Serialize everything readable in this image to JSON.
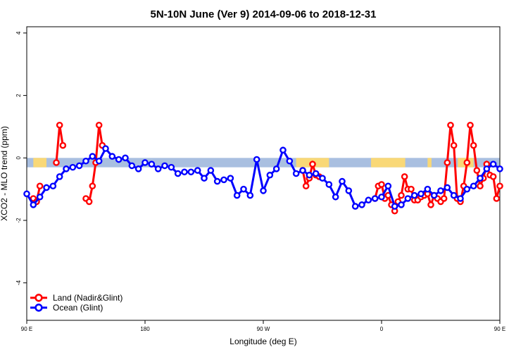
{
  "chart_data": {
    "type": "line",
    "title": "5N-10N June (Ver 9)   2014-09-06 to 2018-12-31",
    "xlabel": "Longitude (deg E)",
    "ylabel": "XCO2 - MLO trend (ppm)",
    "xlim": [
      90,
      450
    ],
    "ylim": [
      -5.2,
      4.2
    ],
    "x_ticks": [
      {
        "value": 90,
        "label": "90 E"
      },
      {
        "value": 180,
        "label": "180"
      },
      {
        "value": 270,
        "label": "90 W"
      },
      {
        "value": 360,
        "label": "0"
      },
      {
        "value": 450,
        "label": "90 E"
      },
      {
        "value": 540,
        "label": "180"
      }
    ],
    "y_ticks": [
      {
        "value": -4,
        "label": "-4"
      },
      {
        "value": -2,
        "label": "-2"
      },
      {
        "value": 0,
        "label": "0"
      },
      {
        "value": 2,
        "label": "2"
      },
      {
        "value": 4,
        "label": "4"
      }
    ],
    "background_band": {
      "ymin": -0.3,
      "ymax": 0.0,
      "color": "#a9bfe0",
      "land_color": "#f9d877"
    },
    "grid": false,
    "legend_position": "bottom-left",
    "series": [
      {
        "name": "Land (Nadir&Glint)",
        "color": "#ff0000",
        "x": [
          95,
          97.5,
          100,
          112.5,
          115,
          117.5,
          135,
          137.5,
          140,
          142.5,
          145,
          147.5,
          300,
          302.5,
          305,
          307.5,
          310,
          312.5,
          355,
          357.5,
          360,
          362.5,
          365,
          367.5,
          370,
          372.5,
          375,
          377.5,
          380,
          382.5,
          385,
          387.5,
          390,
          392.5,
          395,
          397.5,
          400,
          402.5,
          405,
          407.5,
          410,
          412.5,
          415,
          417.5,
          420,
          422.5,
          425,
          427.5,
          430,
          432.5,
          435,
          437.5,
          440,
          442.5,
          445,
          447.5,
          450
        ],
        "y": [
          -1.3,
          -1.4,
          -0.9,
          -0.15,
          1.05,
          0.4,
          -1.3,
          -1.4,
          -0.9,
          -0.15,
          1.05,
          0.4,
          -0.4,
          -0.9,
          -0.65,
          -0.2,
          -0.55,
          -0.6,
          -1.3,
          -0.9,
          -0.85,
          -1.3,
          -1.2,
          -1.5,
          -1.7,
          -1.4,
          -1.2,
          -0.6,
          -1.0,
          -1.0,
          -1.35,
          -1.35,
          -1.25,
          -1.2,
          -1.15,
          -1.5,
          -1.2,
          -1.3,
          -1.4,
          -1.3,
          -0.15,
          1.05,
          0.4,
          -1.3,
          -1.4,
          -0.9,
          -0.15,
          1.05,
          0.4,
          -0.4,
          -0.9,
          -0.65,
          -0.2,
          -0.55,
          -0.6,
          -1.3,
          -0.9
        ]
      },
      {
        "name": "Ocean (Glint)",
        "color": "#0000ff",
        "x": [
          90,
          95,
          100,
          105,
          110,
          115,
          120,
          125,
          130,
          135,
          140,
          145,
          150,
          155,
          160,
          165,
          170,
          175,
          180,
          185,
          190,
          195,
          200,
          205,
          210,
          215,
          220,
          225,
          230,
          235,
          240,
          245,
          250,
          255,
          260,
          265,
          270,
          275,
          280,
          285,
          290,
          295,
          300,
          305,
          310,
          315,
          320,
          325,
          330,
          335,
          340,
          345,
          350,
          355,
          360,
          365,
          370,
          375,
          380,
          385,
          390,
          395,
          400,
          405,
          410,
          415,
          420,
          425,
          430,
          435,
          440,
          445,
          450
        ],
        "y": [
          -1.15,
          -1.5,
          -1.25,
          -0.95,
          -0.9,
          -0.6,
          -0.35,
          -0.3,
          -0.25,
          -0.1,
          0.05,
          -0.1,
          0.3,
          0.05,
          -0.05,
          0.0,
          -0.25,
          -0.35,
          -0.15,
          -0.2,
          -0.35,
          -0.25,
          -0.3,
          -0.5,
          -0.45,
          -0.45,
          -0.4,
          -0.65,
          -0.4,
          -0.75,
          -0.7,
          -0.65,
          -1.2,
          -1.0,
          -1.2,
          -0.05,
          -1.05,
          -0.55,
          -0.35,
          0.25,
          -0.1,
          -0.5,
          -0.4,
          -0.55,
          -0.5,
          -0.65,
          -0.85,
          -1.25,
          -0.75,
          -1.05,
          -1.55,
          -1.5,
          -1.35,
          -1.3,
          -1.25,
          -0.9,
          -1.55,
          -1.5,
          -1.3,
          -1.2,
          -1.15,
          -1.0,
          -1.2,
          -1.05,
          -0.95,
          -1.2,
          -1.3,
          -1.0,
          -0.9,
          -0.65,
          -0.35,
          -0.2,
          -0.35
        ]
      }
    ]
  }
}
